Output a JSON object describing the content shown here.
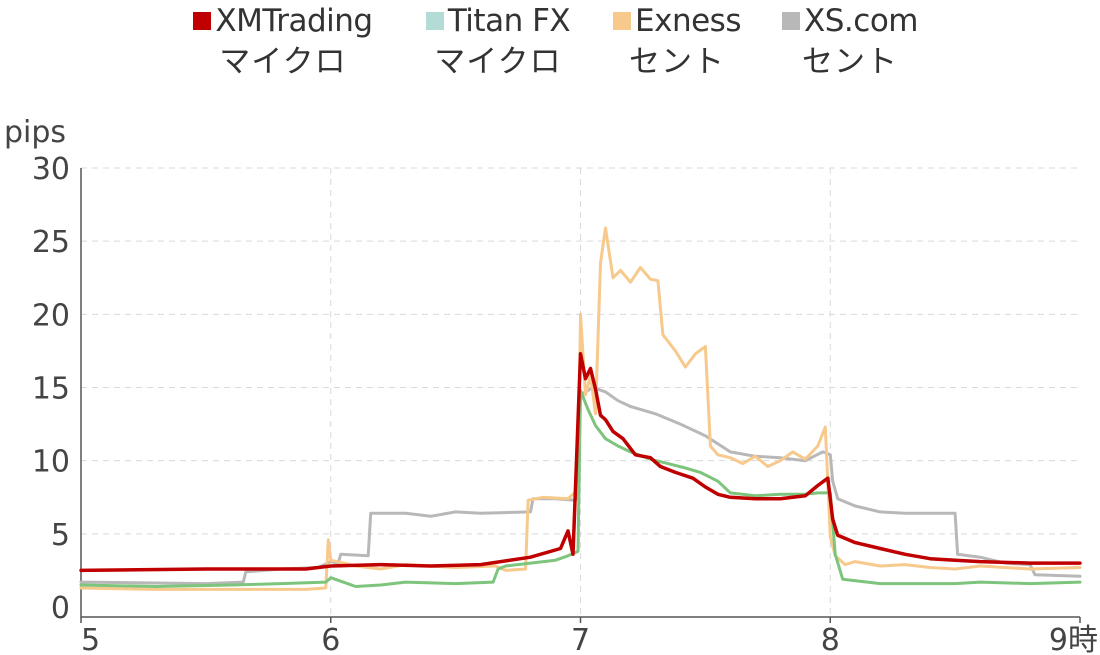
{
  "chart_data": {
    "type": "line",
    "ylabel": "pips",
    "x_ticks": [
      "5",
      "6",
      "7",
      "8",
      "9時"
    ],
    "x_range": [
      5,
      9
    ],
    "y_ticks": [
      "0",
      "5",
      "10",
      "15",
      "20",
      "25",
      "30"
    ],
    "ylim": [
      0,
      30
    ],
    "grid": true,
    "legend_position": "top",
    "series": [
      {
        "name": "XMTrading",
        "sub": "マイクロ",
        "color": "#c00000",
        "points": [
          [
            5.0,
            2.5
          ],
          [
            5.5,
            2.6
          ],
          [
            5.9,
            2.6
          ],
          [
            6.0,
            2.8
          ],
          [
            6.2,
            2.9
          ],
          [
            6.4,
            2.8
          ],
          [
            6.6,
            2.9
          ],
          [
            6.8,
            3.4
          ],
          [
            6.92,
            4.0
          ],
          [
            6.95,
            5.2
          ],
          [
            6.97,
            3.6
          ],
          [
            7.0,
            17.3
          ],
          [
            7.02,
            15.6
          ],
          [
            7.04,
            16.3
          ],
          [
            7.06,
            14.9
          ],
          [
            7.08,
            13.1
          ],
          [
            7.1,
            12.8
          ],
          [
            7.13,
            12.0
          ],
          [
            7.17,
            11.5
          ],
          [
            7.22,
            10.4
          ],
          [
            7.28,
            10.2
          ],
          [
            7.32,
            9.6
          ],
          [
            7.38,
            9.2
          ],
          [
            7.45,
            8.8
          ],
          [
            7.5,
            8.2
          ],
          [
            7.55,
            7.7
          ],
          [
            7.6,
            7.5
          ],
          [
            7.7,
            7.4
          ],
          [
            7.8,
            7.4
          ],
          [
            7.9,
            7.6
          ],
          [
            7.95,
            8.3
          ],
          [
            7.99,
            8.8
          ],
          [
            8.01,
            6.0
          ],
          [
            8.03,
            4.9
          ],
          [
            8.1,
            4.4
          ],
          [
            8.2,
            4.0
          ],
          [
            8.3,
            3.6
          ],
          [
            8.4,
            3.3
          ],
          [
            8.5,
            3.2
          ],
          [
            8.6,
            3.1
          ],
          [
            8.8,
            3.0
          ],
          [
            9.0,
            3.0
          ]
        ]
      },
      {
        "name": "Titan FX",
        "sub": "マイクロ",
        "color": "#7dc47d",
        "points": [
          [
            5.0,
            1.5
          ],
          [
            5.3,
            1.4
          ],
          [
            5.6,
            1.5
          ],
          [
            5.8,
            1.6
          ],
          [
            5.98,
            1.7
          ],
          [
            6.0,
            2.0
          ],
          [
            6.05,
            1.7
          ],
          [
            6.1,
            1.4
          ],
          [
            6.2,
            1.5
          ],
          [
            6.3,
            1.7
          ],
          [
            6.5,
            1.6
          ],
          [
            6.65,
            1.7
          ],
          [
            6.67,
            2.6
          ],
          [
            6.7,
            2.8
          ],
          [
            6.9,
            3.2
          ],
          [
            6.95,
            3.5
          ],
          [
            6.99,
            3.8
          ],
          [
            7.0,
            14.8
          ],
          [
            7.03,
            13.5
          ],
          [
            7.06,
            12.4
          ],
          [
            7.1,
            11.5
          ],
          [
            7.15,
            11.0
          ],
          [
            7.2,
            10.6
          ],
          [
            7.28,
            10.1
          ],
          [
            7.35,
            9.8
          ],
          [
            7.42,
            9.5
          ],
          [
            7.48,
            9.2
          ],
          [
            7.55,
            8.6
          ],
          [
            7.6,
            7.8
          ],
          [
            7.7,
            7.6
          ],
          [
            7.8,
            7.7
          ],
          [
            7.9,
            7.7
          ],
          [
            7.95,
            7.8
          ],
          [
            8.0,
            7.8
          ],
          [
            8.02,
            3.6
          ],
          [
            8.05,
            1.9
          ],
          [
            8.2,
            1.6
          ],
          [
            8.5,
            1.6
          ],
          [
            8.6,
            1.7
          ],
          [
            8.8,
            1.6
          ],
          [
            9.0,
            1.7
          ]
        ]
      },
      {
        "name": "Exness",
        "sub": "セント",
        "color": "#f7c98c",
        "points": [
          [
            5.0,
            1.3
          ],
          [
            5.3,
            1.2
          ],
          [
            5.6,
            1.2
          ],
          [
            5.9,
            1.2
          ],
          [
            5.98,
            1.3
          ],
          [
            5.99,
            4.6
          ],
          [
            6.0,
            3.2
          ],
          [
            6.1,
            2.8
          ],
          [
            6.2,
            2.6
          ],
          [
            6.3,
            2.9
          ],
          [
            6.5,
            2.7
          ],
          [
            6.66,
            2.8
          ],
          [
            6.7,
            2.5
          ],
          [
            6.78,
            2.6
          ],
          [
            6.79,
            7.3
          ],
          [
            6.85,
            7.5
          ],
          [
            6.95,
            7.4
          ],
          [
            6.99,
            8.0
          ],
          [
            7.0,
            20.0
          ],
          [
            7.02,
            14.5
          ],
          [
            7.04,
            15.8
          ],
          [
            7.06,
            13.2
          ],
          [
            7.08,
            23.5
          ],
          [
            7.1,
            25.9
          ],
          [
            7.13,
            22.5
          ],
          [
            7.16,
            23.0
          ],
          [
            7.2,
            22.2
          ],
          [
            7.24,
            23.2
          ],
          [
            7.28,
            22.4
          ],
          [
            7.31,
            22.3
          ],
          [
            7.33,
            18.6
          ],
          [
            7.38,
            17.5
          ],
          [
            7.42,
            16.4
          ],
          [
            7.46,
            17.3
          ],
          [
            7.5,
            17.8
          ],
          [
            7.52,
            11.0
          ],
          [
            7.55,
            10.4
          ],
          [
            7.6,
            10.2
          ],
          [
            7.65,
            9.8
          ],
          [
            7.7,
            10.3
          ],
          [
            7.75,
            9.6
          ],
          [
            7.8,
            10.0
          ],
          [
            7.85,
            10.6
          ],
          [
            7.9,
            10.1
          ],
          [
            7.95,
            11.0
          ],
          [
            7.98,
            12.3
          ],
          [
            8.0,
            4.8
          ],
          [
            8.02,
            3.5
          ],
          [
            8.06,
            2.9
          ],
          [
            8.1,
            3.1
          ],
          [
            8.2,
            2.8
          ],
          [
            8.3,
            2.9
          ],
          [
            8.4,
            2.7
          ],
          [
            8.5,
            2.6
          ],
          [
            8.6,
            2.8
          ],
          [
            8.8,
            2.6
          ],
          [
            9.0,
            2.7
          ]
        ]
      },
      {
        "name": "XS.com",
        "sub": "セント",
        "color": "#b8b8b8",
        "points": [
          [
            5.0,
            1.7
          ],
          [
            5.5,
            1.6
          ],
          [
            5.65,
            1.7
          ],
          [
            5.66,
            2.4
          ],
          [
            5.8,
            2.6
          ],
          [
            5.95,
            2.7
          ],
          [
            6.0,
            3.1
          ],
          [
            6.03,
            3.0
          ],
          [
            6.04,
            3.6
          ],
          [
            6.15,
            3.5
          ],
          [
            6.16,
            6.4
          ],
          [
            6.3,
            6.4
          ],
          [
            6.4,
            6.2
          ],
          [
            6.5,
            6.5
          ],
          [
            6.6,
            6.4
          ],
          [
            6.8,
            6.5
          ],
          [
            6.81,
            7.4
          ],
          [
            6.9,
            7.4
          ],
          [
            6.98,
            7.3
          ],
          [
            6.99,
            7.6
          ],
          [
            7.0,
            14.5
          ],
          [
            7.05,
            15.0
          ],
          [
            7.1,
            14.7
          ],
          [
            7.15,
            14.1
          ],
          [
            7.2,
            13.7
          ],
          [
            7.3,
            13.2
          ],
          [
            7.4,
            12.5
          ],
          [
            7.5,
            11.7
          ],
          [
            7.6,
            10.6
          ],
          [
            7.7,
            10.3
          ],
          [
            7.8,
            10.2
          ],
          [
            7.9,
            10.0
          ],
          [
            7.97,
            10.6
          ],
          [
            8.0,
            10.4
          ],
          [
            8.01,
            8.6
          ],
          [
            8.03,
            7.4
          ],
          [
            8.1,
            6.9
          ],
          [
            8.2,
            6.5
          ],
          [
            8.3,
            6.4
          ],
          [
            8.4,
            6.4
          ],
          [
            8.5,
            6.4
          ],
          [
            8.51,
            3.6
          ],
          [
            8.6,
            3.4
          ],
          [
            8.7,
            3.0
          ],
          [
            8.8,
            2.9
          ],
          [
            8.82,
            2.2
          ],
          [
            9.0,
            2.1
          ]
        ]
      }
    ]
  }
}
